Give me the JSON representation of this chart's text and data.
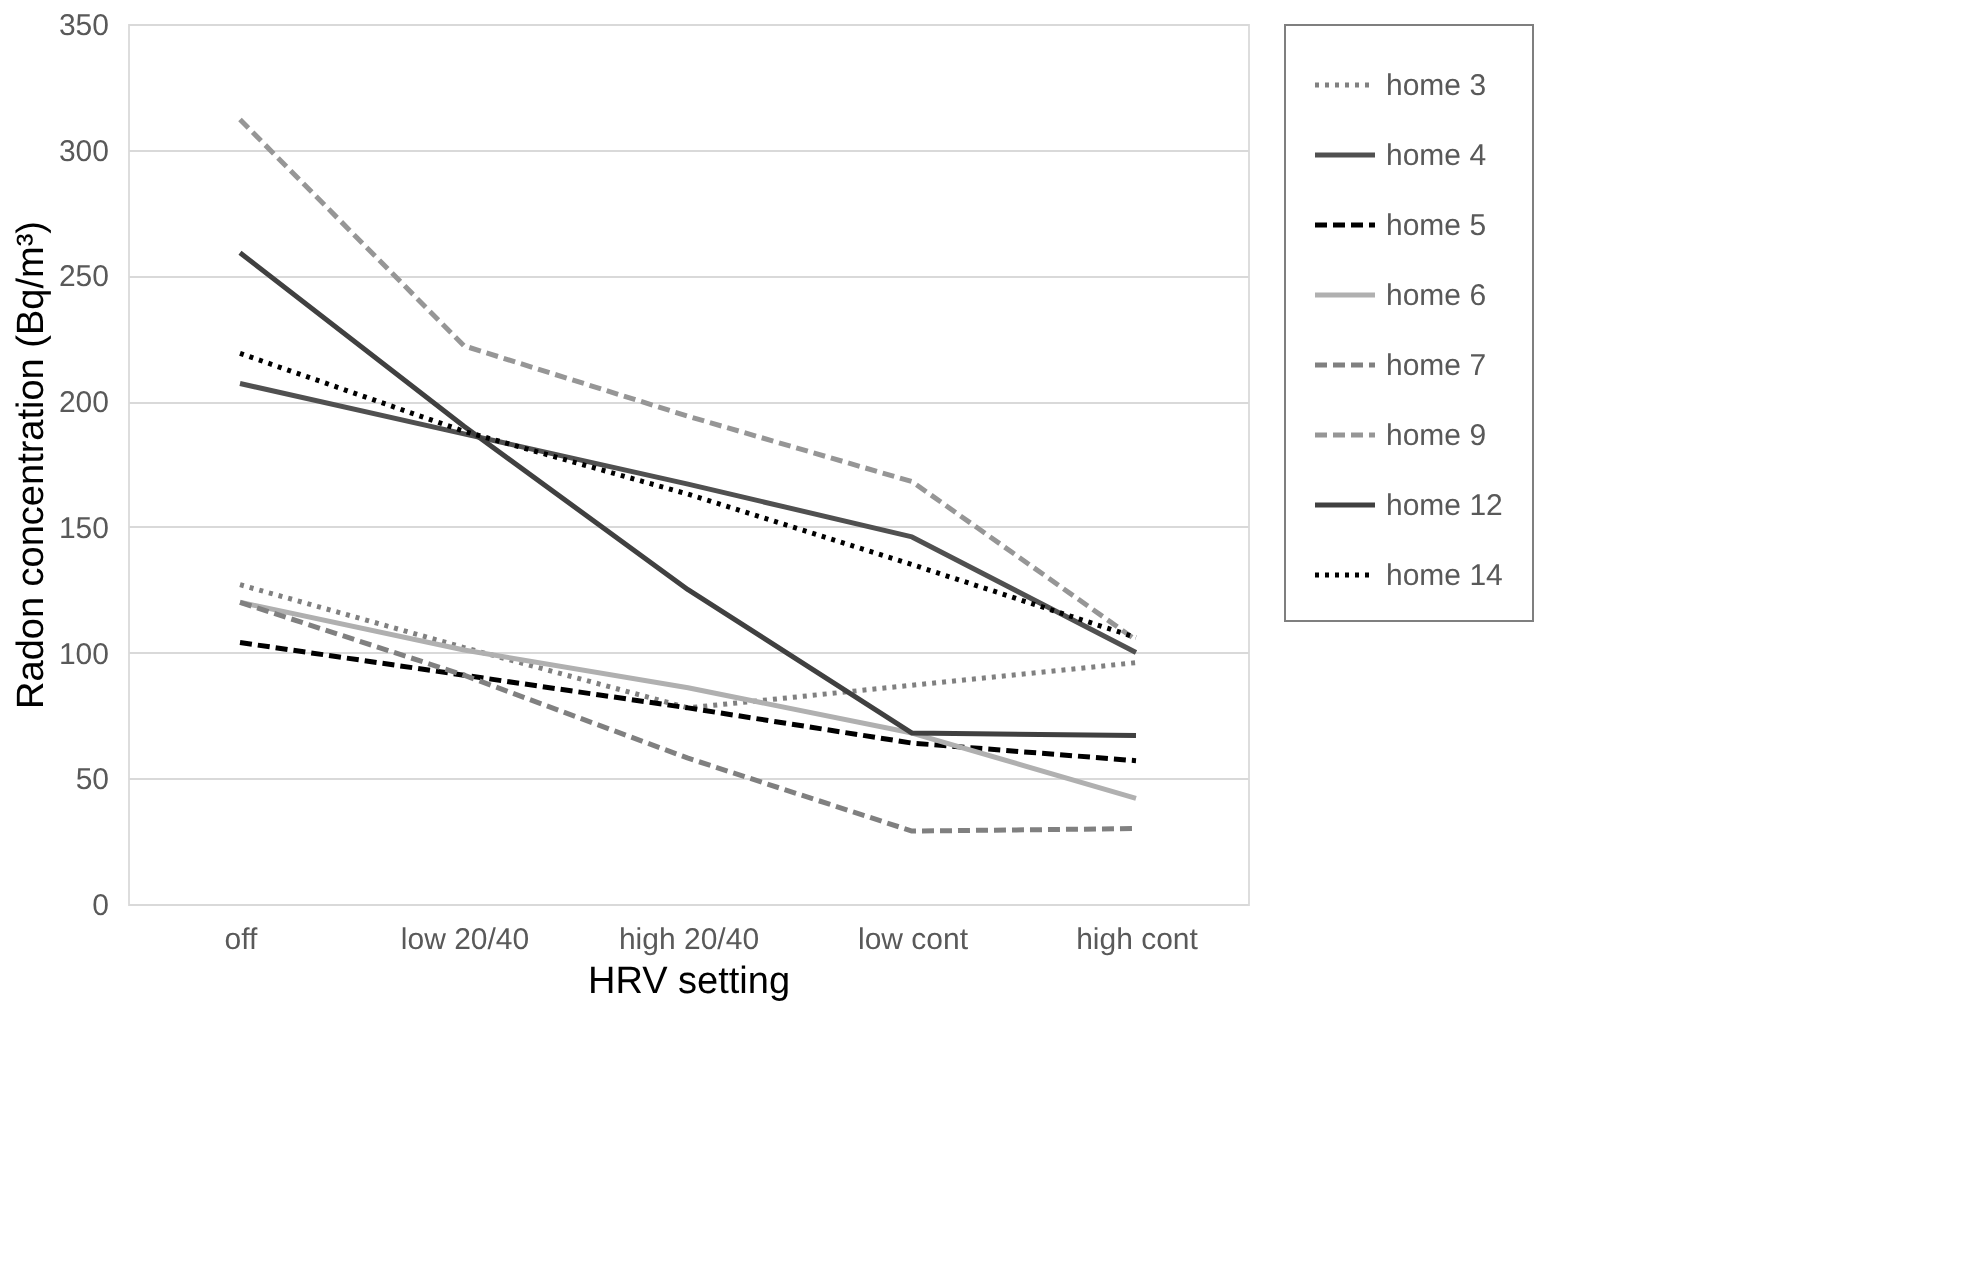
{
  "chart_data": {
    "type": "line",
    "xlabel": "HRV setting",
    "ylabel": "Radon concentration (Bq/m³)",
    "categories": [
      "off",
      "low 20/40",
      "high 20/40",
      "low cont",
      "high cont"
    ],
    "ylim": [
      0,
      350
    ],
    "yticks": [
      0,
      50,
      100,
      150,
      200,
      250,
      300,
      350
    ],
    "grid": "y",
    "legend": "right",
    "marker": "none",
    "series": [
      {
        "name": "home 3",
        "color": "#808080",
        "line_style": "dotted",
        "values": [
          127,
          102,
          78,
          87,
          96
        ]
      },
      {
        "name": "home 4",
        "color": "#505050",
        "line_style": "solid",
        "values": [
          207,
          187,
          167,
          146,
          100
        ]
      },
      {
        "name": "home 5",
        "color": "#000000",
        "line_style": "dashed",
        "values": [
          104,
          91,
          78,
          64,
          57
        ]
      },
      {
        "name": "home 6",
        "color": "#b0b0b0",
        "line_style": "solid",
        "values": [
          120,
          101,
          86,
          68,
          42
        ]
      },
      {
        "name": "home 7",
        "color": "#808080",
        "line_style": "dashed",
        "values": [
          120,
          91,
          58,
          29,
          30
        ]
      },
      {
        "name": "home 9",
        "color": "#969696",
        "line_style": "dashed",
        "values": [
          312,
          222,
          194,
          168,
          105
        ]
      },
      {
        "name": "home 12",
        "color": "#404040",
        "line_style": "solid",
        "values": [
          259,
          190,
          125,
          68,
          67
        ]
      },
      {
        "name": "home 14",
        "color": "#000000",
        "line_style": "dotted",
        "values": [
          219,
          188,
          163,
          135,
          106
        ]
      }
    ]
  }
}
